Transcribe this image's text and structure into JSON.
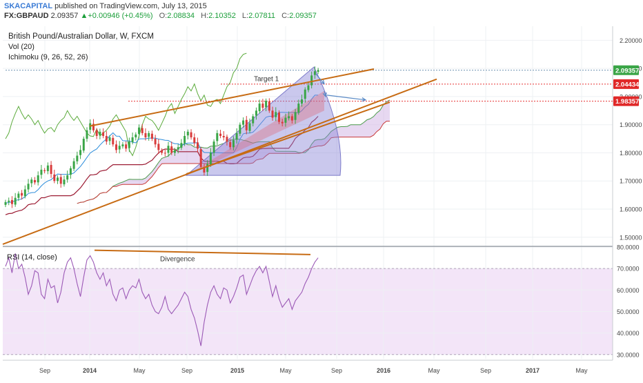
{
  "header": {
    "publisher": "SKACAPITAL",
    "published_text": "published on TradingView.com, July 13, 2015",
    "symbol": "FX:GBPAUD",
    "last": "2.09357",
    "change": "+0.00946 (+0.45%)",
    "open_label": "O:",
    "open": "2.08834",
    "high_label": "H:",
    "high": "2.10352",
    "low_label": "L:",
    "low": "2.07811",
    "close_label": "C:",
    "close": "2.09357"
  },
  "legend": {
    "title": "British Pound/Australian Dollar, W, FXCM",
    "vol": "Vol (20)",
    "ichimoku": "Ichimoku (9, 26, 52, 26)"
  },
  "rsi": {
    "label": "RSI (14, close)",
    "annotation": "Divergence"
  },
  "annotations": {
    "target": "Target 1"
  },
  "price_labels": {
    "last": "2.09357",
    "line1": "2.04434",
    "line2": "1.98357"
  },
  "colors": {
    "bull": "#3aa547",
    "bear": "#d93b3b",
    "trendline": "#c76b13",
    "tenkan": "#2a8cdb",
    "kijun": "#9b1a32",
    "chikou": "#5aaa3a",
    "rsi": "#9b59b6",
    "rsi_band": "#f3e5f8",
    "price_line": "#e83030",
    "arrow": "#5a8ac6"
  },
  "chart_data": {
    "type": "candlestick",
    "price_axis": {
      "ylim": [
        1.47,
        2.25
      ],
      "ticks": [
        "2.20000",
        "2.10000",
        "2.00000",
        "1.90000",
        "1.80000",
        "1.70000",
        "1.60000",
        "1.50000"
      ]
    },
    "rsi_axis": {
      "ylim": [
        28,
        80
      ],
      "ticks": [
        "80.0000",
        "70.0000",
        "60.0000",
        "50.0000",
        "40.0000",
        "30.0000"
      ]
    },
    "time_axis": [
      "Sep",
      "2014",
      "May",
      "Sep",
      "2015",
      "May",
      "Sep",
      "2016",
      "May",
      "Sep",
      "2017",
      "May"
    ],
    "horizontal_levels": [
      2.09357,
      2.04434,
      1.98357
    ],
    "close_series": [
      1.625,
      1.63,
      1.618,
      1.64,
      1.655,
      1.648,
      1.67,
      1.69,
      1.705,
      1.695,
      1.72,
      1.74,
      1.735,
      1.755,
      1.725,
      1.7,
      1.712,
      1.69,
      1.705,
      1.72,
      1.745,
      1.77,
      1.79,
      1.81,
      1.85,
      1.88,
      1.905,
      1.88,
      1.86,
      1.875,
      1.86,
      1.84,
      1.855,
      1.83,
      1.81,
      1.825,
      1.83,
      1.815,
      1.84,
      1.855,
      1.865,
      1.89,
      1.87,
      1.855,
      1.87,
      1.85,
      1.83,
      1.81,
      1.8,
      1.798,
      1.825,
      1.8,
      1.81,
      1.82,
      1.835,
      1.86,
      1.875,
      1.855,
      1.835,
      1.815,
      1.75,
      1.73,
      1.76,
      1.8,
      1.84,
      1.87,
      1.86,
      1.855,
      1.84,
      1.82,
      1.845,
      1.87,
      1.9,
      1.915,
      1.88,
      1.905,
      1.93,
      1.95,
      1.975,
      1.96,
      1.985,
      1.95,
      1.925,
      1.945,
      1.91,
      1.905,
      1.925,
      1.93,
      1.915,
      1.945,
      1.975,
      1.99,
      2.025,
      2.04,
      2.075,
      2.09,
      2.094
    ],
    "rsi_series": [
      71,
      75,
      68,
      77,
      70,
      72,
      66,
      58,
      62,
      69,
      68,
      58,
      56,
      65,
      61,
      62,
      54,
      59,
      68,
      73,
      75,
      70,
      63,
      57,
      66,
      74,
      76,
      73,
      68,
      65,
      68,
      62,
      65,
      58,
      55,
      60,
      61,
      56,
      60,
      62,
      61,
      65,
      59,
      56,
      58,
      53,
      50,
      49,
      52,
      57,
      51,
      49,
      51,
      53,
      56,
      59,
      57,
      51,
      47,
      41,
      34,
      45,
      53,
      59,
      62,
      58,
      56,
      61,
      60,
      54,
      57,
      61,
      66,
      67,
      58,
      62,
      66,
      69,
      71,
      68,
      71,
      64,
      57,
      62,
      56,
      52,
      54,
      56,
      51,
      55,
      57,
      59,
      63,
      66,
      70,
      73,
      75
    ]
  }
}
